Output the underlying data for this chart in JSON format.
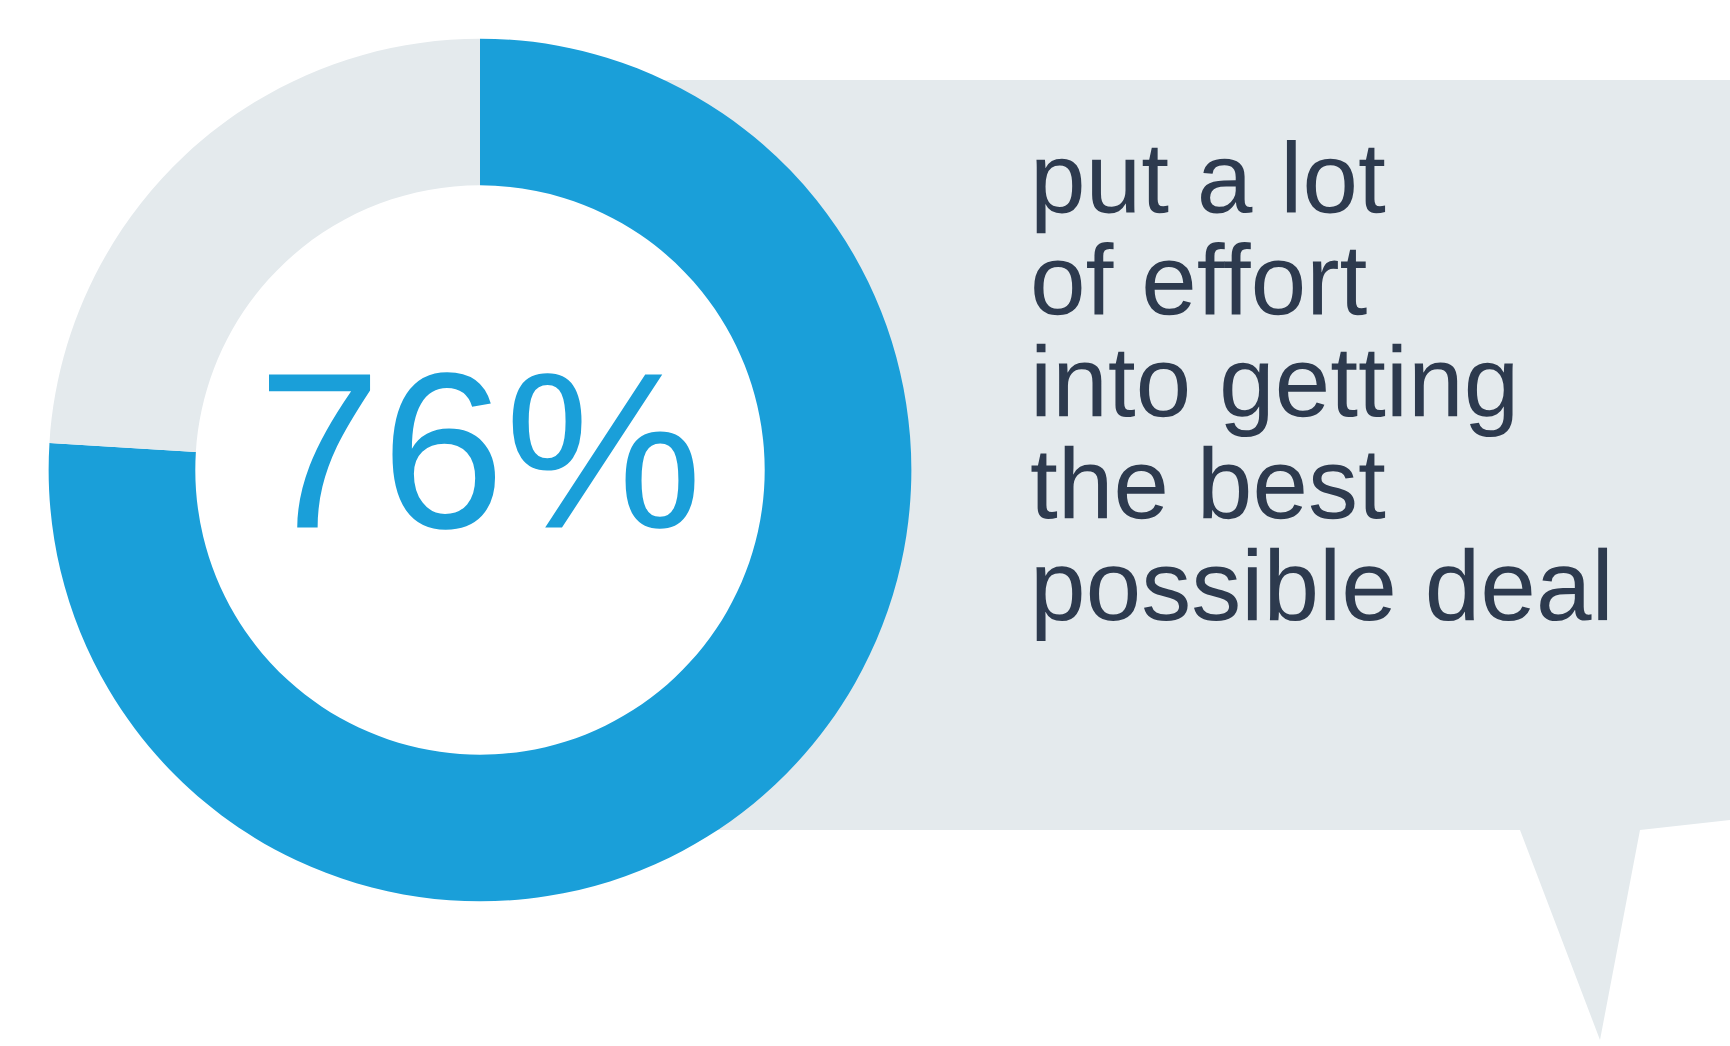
{
  "chart_data": {
    "type": "donut",
    "categories": [
      null,
      null
    ],
    "values": [
      76,
      24
    ],
    "colors": [
      "#1a9fd9",
      "#e4eaed"
    ],
    "annotations": [
      "76%",
      "put a lot\nof effort\ninto getting\nthe best\npossible deal"
    ]
  }
}
